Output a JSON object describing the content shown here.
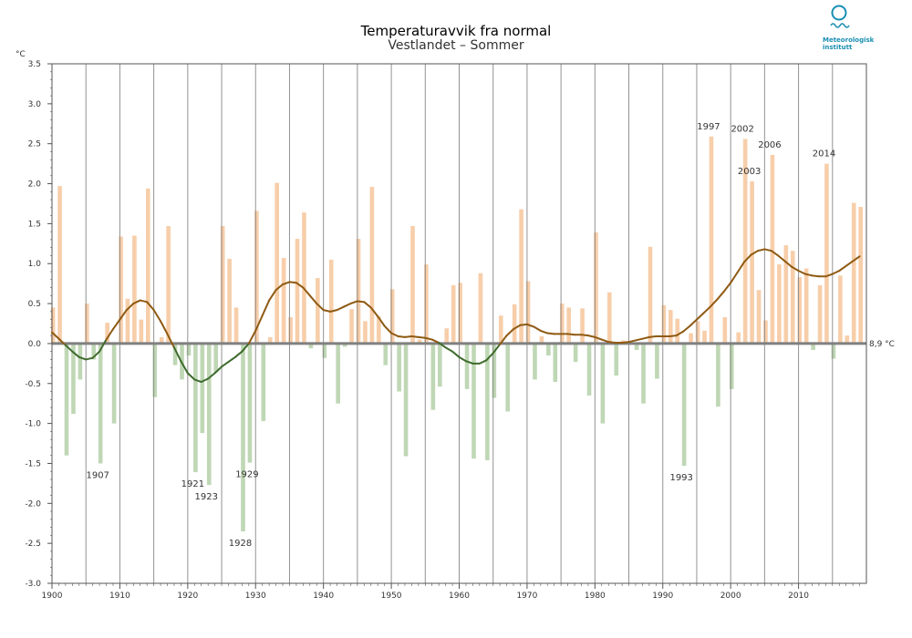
{
  "logo": {
    "name": "Meteorologisk institutt",
    "line1": "Meteorologisk",
    "line2": "institutt",
    "color": "#1a8fb3"
  },
  "chart_data": {
    "type": "bar",
    "title": "Temperaturavvik fra normal",
    "subtitle": "Vestlandet – Sommer",
    "ylabel": "°C",
    "normal_label": "8,9 °C",
    "ylim": [
      -3.0,
      3.5
    ],
    "xlim": [
      1900,
      2020
    ],
    "y_ticks": [
      "3.5",
      "3.0",
      "2.5",
      "2.0",
      "1.5",
      "1.0",
      "0.5",
      "0.0",
      "-0.5",
      "-1.0",
      "-1.5",
      "-2.0",
      "-2.5",
      "-3.0"
    ],
    "x_ticks": [
      "1900",
      "1910",
      "1920",
      "1930",
      "1940",
      "1950",
      "1960",
      "1970",
      "1980",
      "1990",
      "2000",
      "2010"
    ],
    "years": [
      1900,
      1901,
      1902,
      1903,
      1904,
      1905,
      1906,
      1907,
      1908,
      1909,
      1910,
      1911,
      1912,
      1913,
      1914,
      1915,
      1916,
      1917,
      1918,
      1919,
      1920,
      1921,
      1922,
      1923,
      1924,
      1925,
      1926,
      1927,
      1928,
      1929,
      1930,
      1931,
      1932,
      1933,
      1934,
      1935,
      1936,
      1937,
      1938,
      1939,
      1940,
      1941,
      1942,
      1943,
      1944,
      1945,
      1946,
      1947,
      1948,
      1949,
      1950,
      1951,
      1952,
      1953,
      1954,
      1955,
      1956,
      1957,
      1958,
      1959,
      1960,
      1961,
      1962,
      1963,
      1964,
      1965,
      1966,
      1967,
      1968,
      1969,
      1970,
      1971,
      1972,
      1973,
      1974,
      1975,
      1976,
      1977,
      1978,
      1979,
      1980,
      1981,
      1982,
      1983,
      1984,
      1985,
      1986,
      1987,
      1988,
      1989,
      1990,
      1991,
      1992,
      1993,
      1994,
      1995,
      1996,
      1997,
      1998,
      1999,
      2000,
      2001,
      2002,
      2003,
      2004,
      2005,
      2006,
      2007,
      2008,
      2009,
      2010,
      2011,
      2012,
      2013,
      2014,
      2015,
      2016,
      2017,
      2018,
      2019
    ],
    "values": [
      0.45,
      1.97,
      -1.4,
      -0.88,
      -0.45,
      0.5,
      -0.2,
      -1.5,
      0.26,
      -1.0,
      1.34,
      0.56,
      1.35,
      0.3,
      1.94,
      -0.67,
      0.08,
      1.47,
      -0.27,
      -0.45,
      -0.15,
      -1.61,
      -1.12,
      -1.77,
      -0.36,
      1.47,
      1.06,
      0.45,
      -2.35,
      -1.49,
      1.66,
      -0.97,
      0.08,
      2.01,
      1.07,
      0.33,
      1.31,
      1.64,
      -0.06,
      0.82,
      -0.18,
      1.05,
      -0.75,
      -0.04,
      0.43,
      1.31,
      0.28,
      1.96,
      0.34,
      -0.27,
      0.68,
      -0.6,
      -1.41,
      1.47,
      0.05,
      0.99,
      -0.83,
      -0.54,
      0.19,
      0.73,
      0.76,
      -0.57,
      -1.44,
      0.88,
      -1.46,
      -0.68,
      0.35,
      -0.85,
      0.49,
      1.68,
      0.78,
      -0.45,
      0.09,
      -0.15,
      -0.48,
      0.5,
      0.45,
      -0.23,
      0.44,
      -0.65,
      1.39,
      -1.0,
      0.64,
      -0.4,
      0.04,
      0.02,
      -0.08,
      -0.75,
      1.21,
      -0.44,
      0.48,
      0.42,
      0.31,
      -1.53,
      0.13,
      0.28,
      0.16,
      2.59,
      -0.79,
      0.33,
      -0.57,
      0.14,
      2.56,
      2.03,
      0.67,
      0.29,
      2.36,
      0.99,
      1.23,
      1.16,
      0.83,
      0.94,
      -0.08,
      0.73,
      2.25,
      -0.19,
      0.85,
      0.1,
      1.76,
      1.71
    ],
    "smooth": [
      [
        1900,
        0.14
      ],
      [
        1901,
        0.06
      ],
      [
        1902,
        -0.02
      ],
      [
        1903,
        -0.1
      ],
      [
        1904,
        -0.17
      ],
      [
        1905,
        -0.2
      ],
      [
        1906,
        -0.18
      ],
      [
        1907,
        -0.1
      ],
      [
        1908,
        0.05
      ],
      [
        1909,
        0.18
      ],
      [
        1910,
        0.3
      ],
      [
        1911,
        0.42
      ],
      [
        1912,
        0.5
      ],
      [
        1913,
        0.54
      ],
      [
        1914,
        0.52
      ],
      [
        1915,
        0.42
      ],
      [
        1916,
        0.28
      ],
      [
        1917,
        0.12
      ],
      [
        1918,
        -0.05
      ],
      [
        1919,
        -0.22
      ],
      [
        1920,
        -0.37
      ],
      [
        1921,
        -0.45
      ],
      [
        1922,
        -0.48
      ],
      [
        1923,
        -0.44
      ],
      [
        1924,
        -0.37
      ],
      [
        1925,
        -0.29
      ],
      [
        1926,
        -0.23
      ],
      [
        1927,
        -0.17
      ],
      [
        1928,
        -0.1
      ],
      [
        1929,
        0.0
      ],
      [
        1930,
        0.16
      ],
      [
        1931,
        0.35
      ],
      [
        1932,
        0.54
      ],
      [
        1933,
        0.67
      ],
      [
        1934,
        0.74
      ],
      [
        1935,
        0.77
      ],
      [
        1936,
        0.76
      ],
      [
        1937,
        0.7
      ],
      [
        1938,
        0.6
      ],
      [
        1939,
        0.5
      ],
      [
        1940,
        0.42
      ],
      [
        1941,
        0.4
      ],
      [
        1942,
        0.42
      ],
      [
        1943,
        0.46
      ],
      [
        1944,
        0.5
      ],
      [
        1945,
        0.53
      ],
      [
        1946,
        0.52
      ],
      [
        1947,
        0.45
      ],
      [
        1948,
        0.34
      ],
      [
        1949,
        0.22
      ],
      [
        1950,
        0.13
      ],
      [
        1951,
        0.09
      ],
      [
        1952,
        0.08
      ],
      [
        1953,
        0.09
      ],
      [
        1954,
        0.08
      ],
      [
        1955,
        0.07
      ],
      [
        1956,
        0.05
      ],
      [
        1957,
        0.01
      ],
      [
        1958,
        -0.05
      ],
      [
        1959,
        -0.1
      ],
      [
        1960,
        -0.17
      ],
      [
        1961,
        -0.22
      ],
      [
        1962,
        -0.25
      ],
      [
        1963,
        -0.25
      ],
      [
        1964,
        -0.21
      ],
      [
        1965,
        -0.12
      ],
      [
        1966,
        -0.01
      ],
      [
        1967,
        0.1
      ],
      [
        1968,
        0.18
      ],
      [
        1969,
        0.23
      ],
      [
        1970,
        0.24
      ],
      [
        1971,
        0.21
      ],
      [
        1972,
        0.16
      ],
      [
        1973,
        0.13
      ],
      [
        1974,
        0.12
      ],
      [
        1975,
        0.12
      ],
      [
        1976,
        0.12
      ],
      [
        1977,
        0.11
      ],
      [
        1978,
        0.11
      ],
      [
        1979,
        0.1
      ],
      [
        1980,
        0.08
      ],
      [
        1981,
        0.05
      ],
      [
        1982,
        0.02
      ],
      [
        1983,
        0.01
      ],
      [
        1984,
        0.01
      ],
      [
        1985,
        0.02
      ],
      [
        1986,
        0.04
      ],
      [
        1987,
        0.06
      ],
      [
        1988,
        0.08
      ],
      [
        1989,
        0.09
      ],
      [
        1990,
        0.09
      ],
      [
        1991,
        0.09
      ],
      [
        1992,
        0.1
      ],
      [
        1993,
        0.15
      ],
      [
        1994,
        0.22
      ],
      [
        1995,
        0.3
      ],
      [
        1996,
        0.38
      ],
      [
        1997,
        0.46
      ],
      [
        1998,
        0.55
      ],
      [
        1999,
        0.65
      ],
      [
        2000,
        0.76
      ],
      [
        2001,
        0.89
      ],
      [
        2002,
        1.02
      ],
      [
        2003,
        1.11
      ],
      [
        2004,
        1.16
      ],
      [
        2005,
        1.18
      ],
      [
        2006,
        1.16
      ],
      [
        2007,
        1.1
      ],
      [
        2008,
        1.03
      ],
      [
        2009,
        0.96
      ],
      [
        2010,
        0.91
      ],
      [
        2011,
        0.87
      ],
      [
        2012,
        0.85
      ],
      [
        2013,
        0.84
      ],
      [
        2014,
        0.84
      ],
      [
        2015,
        0.87
      ],
      [
        2016,
        0.91
      ],
      [
        2017,
        0.97
      ],
      [
        2018,
        1.03
      ],
      [
        2019,
        1.09
      ]
    ],
    "annotations": [
      {
        "label": "1907",
        "year": 1907,
        "value": -1.5
      },
      {
        "label": "1921",
        "year": 1921,
        "value": -1.61
      },
      {
        "label": "1923",
        "year": 1923,
        "value": -1.77
      },
      {
        "label": "1928",
        "year": 1928,
        "value": -2.35
      },
      {
        "label": "1929",
        "year": 1929,
        "value": -1.49
      },
      {
        "label": "1993",
        "year": 1993,
        "value": -1.53
      },
      {
        "label": "1997",
        "year": 1997,
        "value": 2.59
      },
      {
        "label": "2002",
        "year": 2002,
        "value": 2.56
      },
      {
        "label": "2003",
        "year": 2003,
        "value": 2.03
      },
      {
        "label": "2006",
        "year": 2006,
        "value": 2.36
      },
      {
        "label": "2014",
        "year": 2014,
        "value": 2.25
      }
    ],
    "colors": {
      "positive_bar": "#f7ceaa",
      "negative_bar": "#bfd7b5",
      "positive_line": "#8f5a12",
      "negative_line": "#3f6b2e",
      "zero_line": "#808080",
      "grid": "#808080"
    }
  }
}
